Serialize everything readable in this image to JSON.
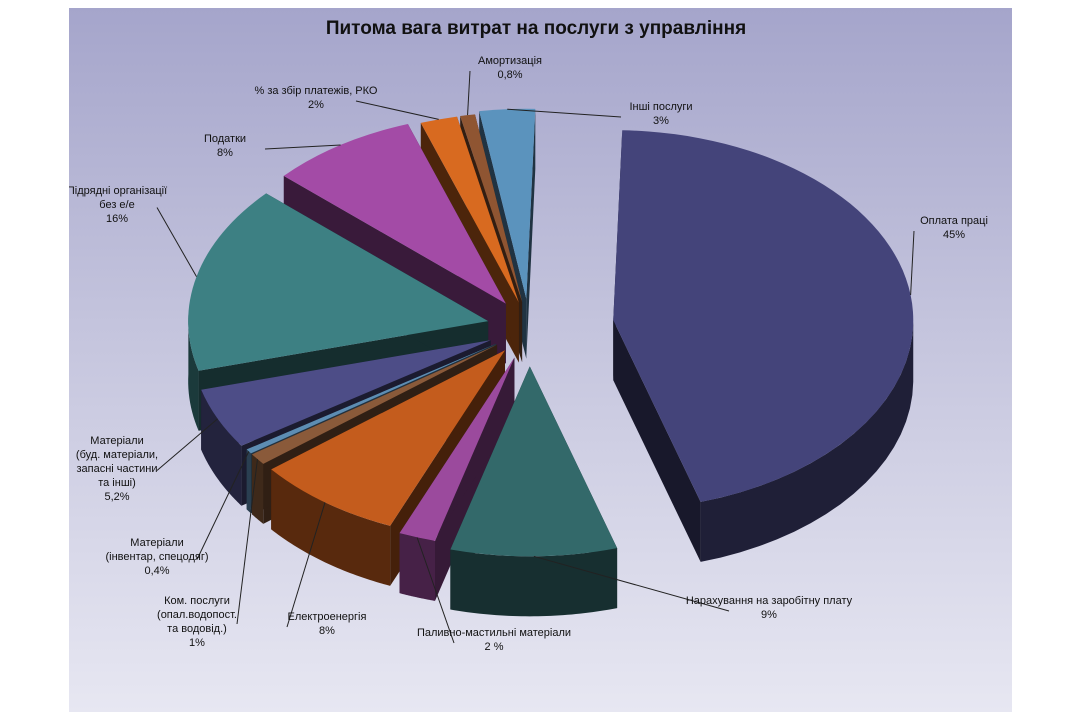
{
  "chart_data": {
    "type": "pie",
    "title": "Питома вага витрат на послуги з управління",
    "slices": [
      {
        "label_lines": [
          "Оплата праці",
          "45%"
        ],
        "value": 45,
        "color": "#44447a"
      },
      {
        "label_lines": [
          "Нарахування на заробітну плату",
          "9%"
        ],
        "value": 9,
        "color": "#33696a"
      },
      {
        "label_lines": [
          "Паливно-мастильні матеріали",
          "2 %"
        ],
        "value": 2,
        "color": "#9b4a9d"
      },
      {
        "label_lines": [
          "Електроенергія",
          "8%"
        ],
        "value": 8,
        "color": "#c45c1d"
      },
      {
        "label_lines": [
          "Ком. послуги",
          "(опал.водопост.",
          "та  водовід.)",
          "1%"
        ],
        "value": 1,
        "color": "#8a5a3a"
      },
      {
        "label_lines": [
          "Матеріали",
          "(інвентар, спецодяг)",
          "0,4%"
        ],
        "value": 0.4,
        "color": "#5d8db3"
      },
      {
        "label_lines": [
          "Матеріали",
          "(буд. матеріали,",
          "запасні частини",
          "та  інші)",
          "5,2%"
        ],
        "value": 5.2,
        "color": "#4d4d87"
      },
      {
        "label_lines": [
          "Підрядні організації",
          "без е/е",
          "16%"
        ],
        "value": 16,
        "color": "#3d8083"
      },
      {
        "label_lines": [
          "Податки",
          "8%"
        ],
        "value": 8,
        "color": "#a34ba6"
      },
      {
        "label_lines": [
          "% за збір платежів, РКО",
          "2%"
        ],
        "value": 2,
        "color": "#d86a20"
      },
      {
        "label_lines": [
          "Амортизація",
          "0,8%"
        ],
        "value": 0.8,
        "color": "#8f5532"
      },
      {
        "label_lines": [
          "Інші послуги",
          "3%"
        ],
        "value": 3,
        "color": "#5b93bd"
      }
    ]
  }
}
